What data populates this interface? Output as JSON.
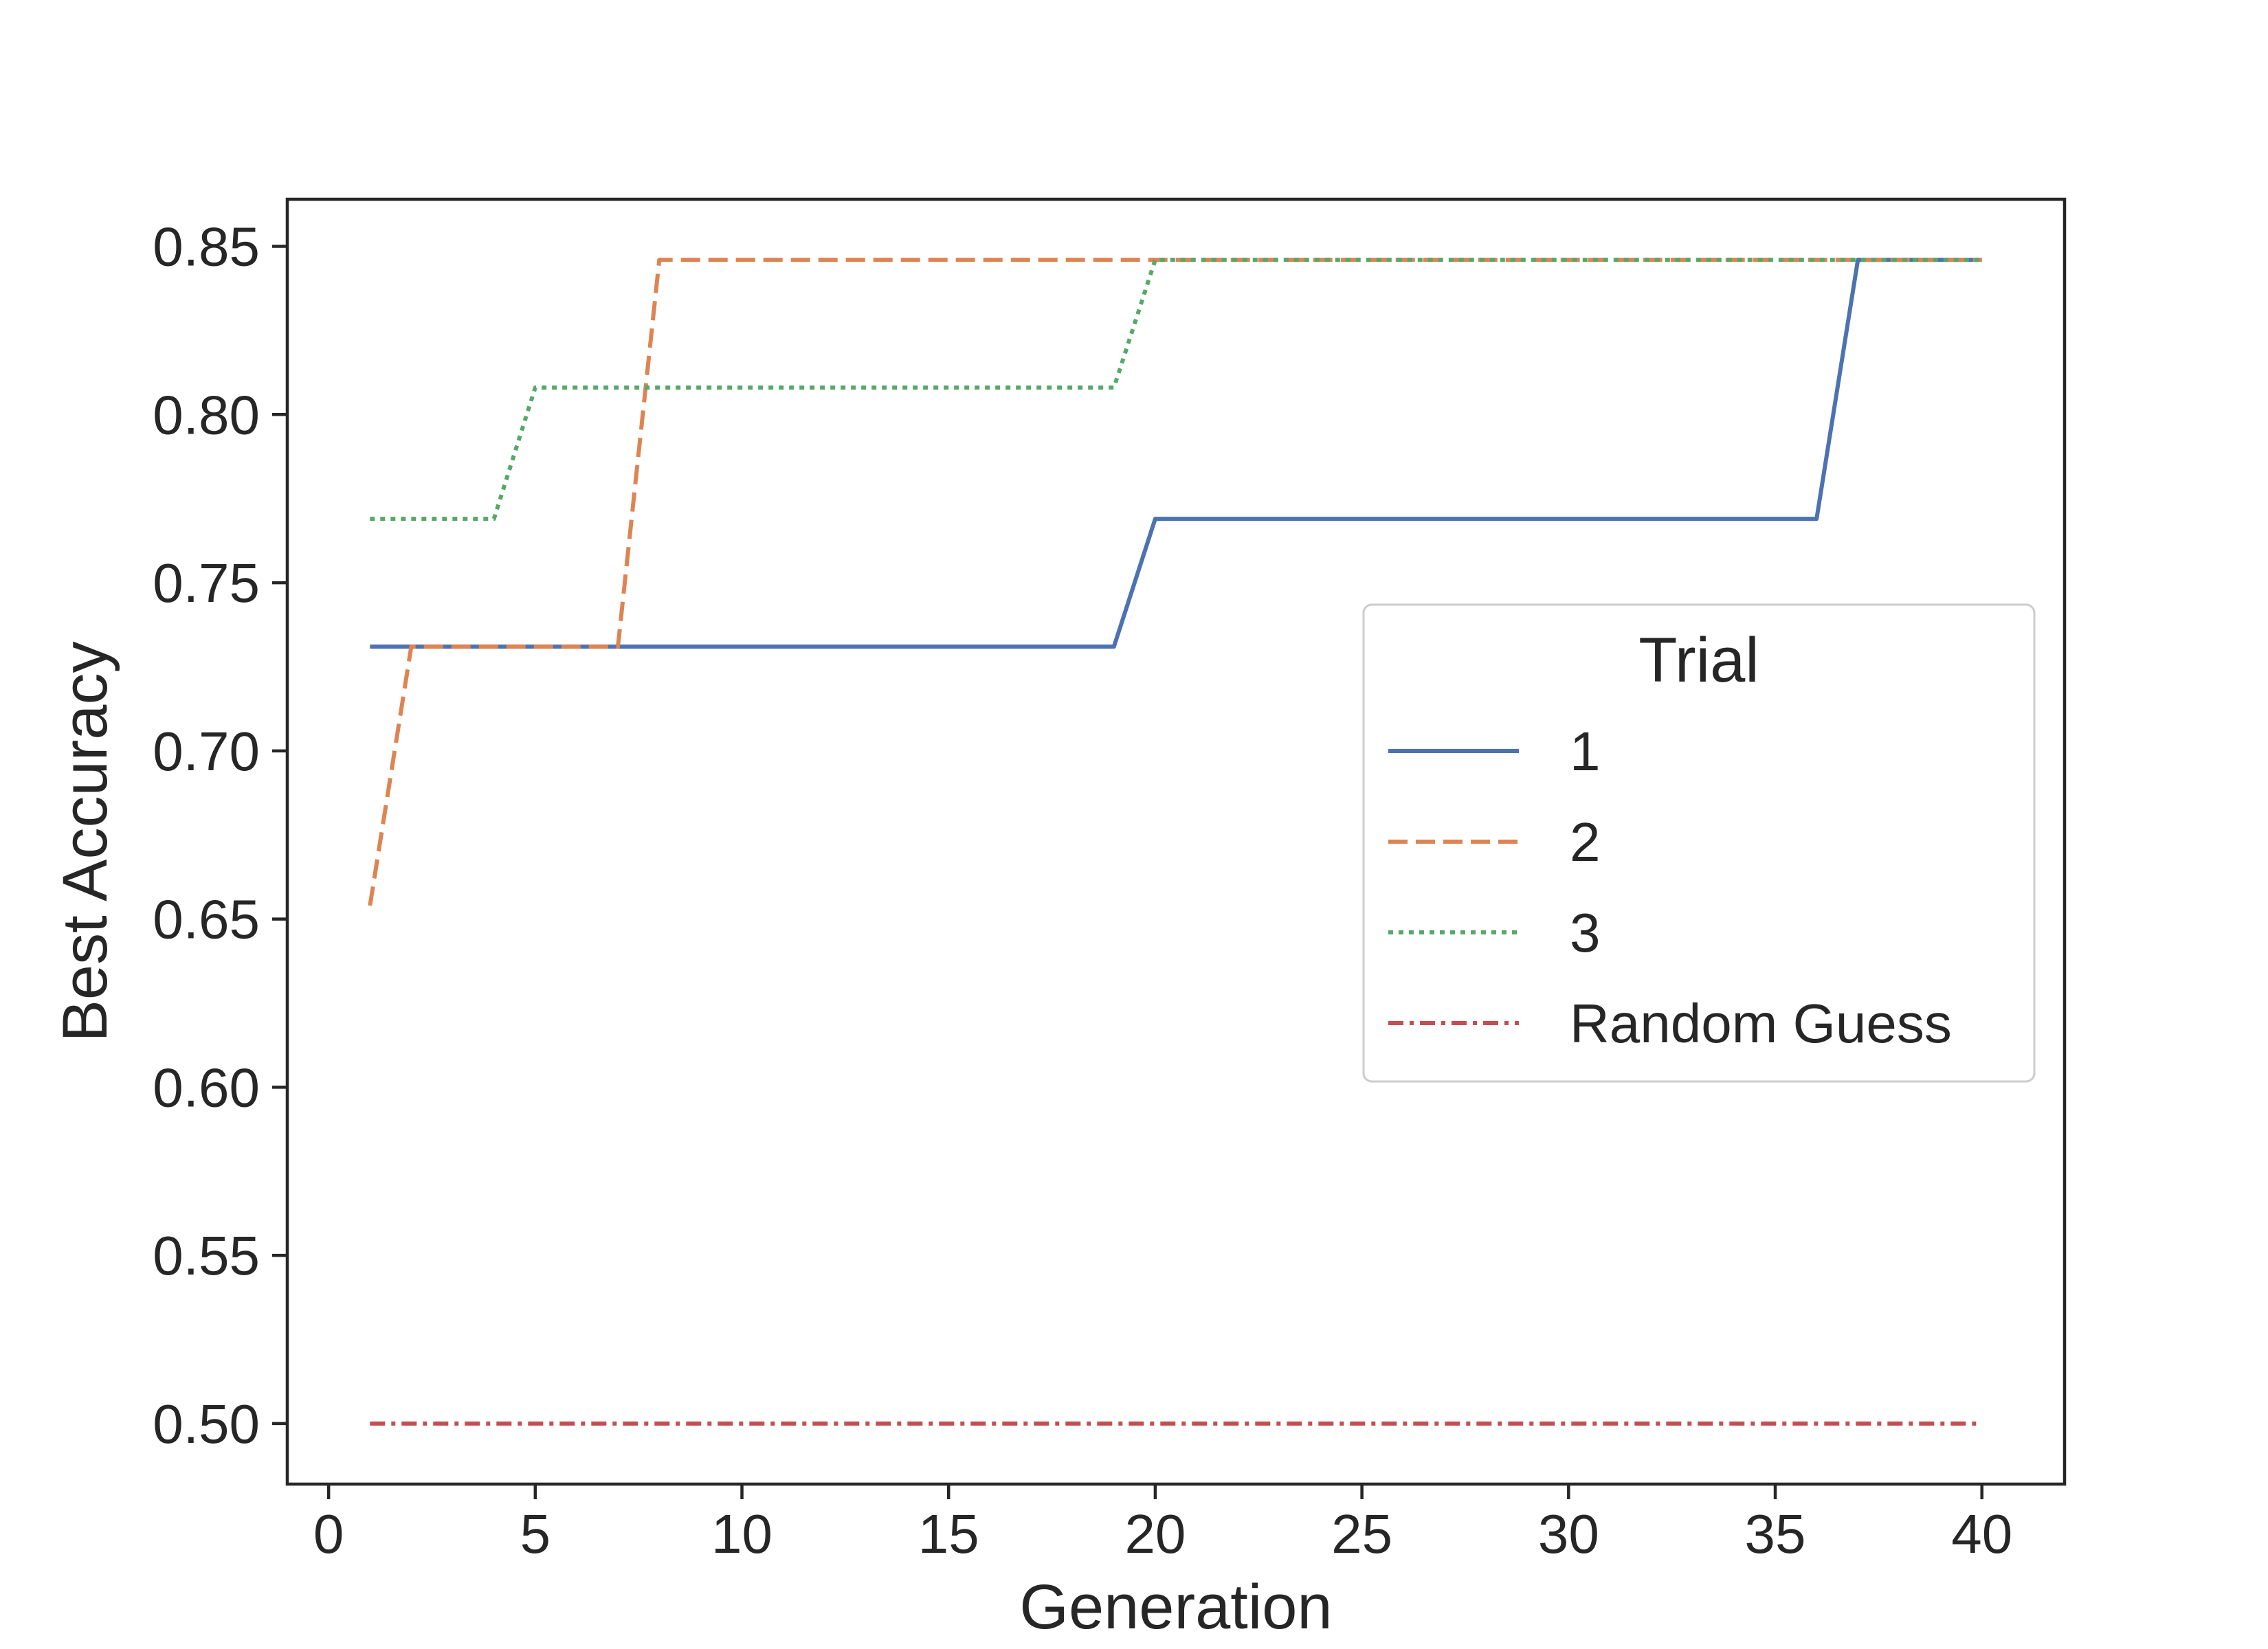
{
  "chart_data": {
    "type": "line",
    "title": "",
    "xlabel": "Generation",
    "ylabel": "Best Accuracy",
    "xlim": [
      -1,
      42
    ],
    "ylim": [
      0.482,
      0.864
    ],
    "xticks": [
      0,
      5,
      10,
      15,
      20,
      25,
      30,
      35,
      40
    ],
    "yticks": [
      0.5,
      0.55,
      0.6,
      0.65,
      0.7,
      0.75,
      0.8,
      0.85
    ],
    "grid": false,
    "legend": {
      "title": "Trial",
      "position": "center-right"
    },
    "series": [
      {
        "name": "1",
        "color": "#4c72b0",
        "style": "solid",
        "points": [
          [
            1,
            0.731
          ],
          [
            19,
            0.731
          ],
          [
            20,
            0.769
          ],
          [
            36,
            0.769
          ],
          [
            37,
            0.846
          ],
          [
            40,
            0.846
          ]
        ]
      },
      {
        "name": "2",
        "color": "#dd8452",
        "style": "dashed",
        "points": [
          [
            1,
            0.654
          ],
          [
            2,
            0.731
          ],
          [
            7,
            0.731
          ],
          [
            8,
            0.846
          ],
          [
            40,
            0.846
          ]
        ]
      },
      {
        "name": "3",
        "color": "#55a868",
        "style": "dotted",
        "points": [
          [
            1,
            0.769
          ],
          [
            4,
            0.769
          ],
          [
            5,
            0.808
          ],
          [
            19,
            0.808
          ],
          [
            20,
            0.846
          ],
          [
            40,
            0.846
          ]
        ]
      },
      {
        "name": "Random Guess",
        "color": "#c44e52",
        "style": "dashdot",
        "points": [
          [
            1,
            0.5
          ],
          [
            40,
            0.5
          ]
        ]
      }
    ]
  }
}
